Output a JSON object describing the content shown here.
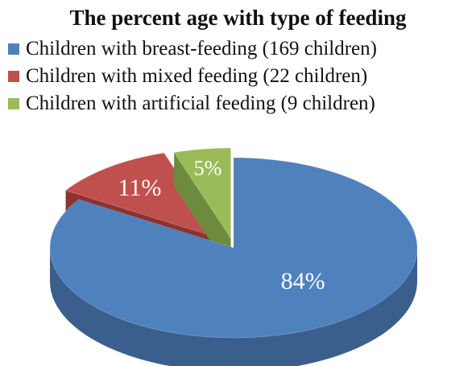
{
  "chart_data": {
    "type": "pie",
    "style": "3d-exploded",
    "title": "The percent age with type of feeding",
    "legend_position": "top-left",
    "slices": [
      {
        "legend": "Children with breast-feeding (169 children)",
        "value": 84,
        "label": "84%",
        "color": "#4F81BD",
        "side_color": "#3A5F8C"
      },
      {
        "legend": "Children with mixed feeding (22 children)",
        "value": 11,
        "label": "11%",
        "color": "#C0504D",
        "side_color": "#8B3331"
      },
      {
        "legend": "Children with artificial feeding (9 children)",
        "value": 5,
        "label": "5%",
        "color": "#9BBB59",
        "side_color": "#6E8A3C"
      }
    ]
  }
}
